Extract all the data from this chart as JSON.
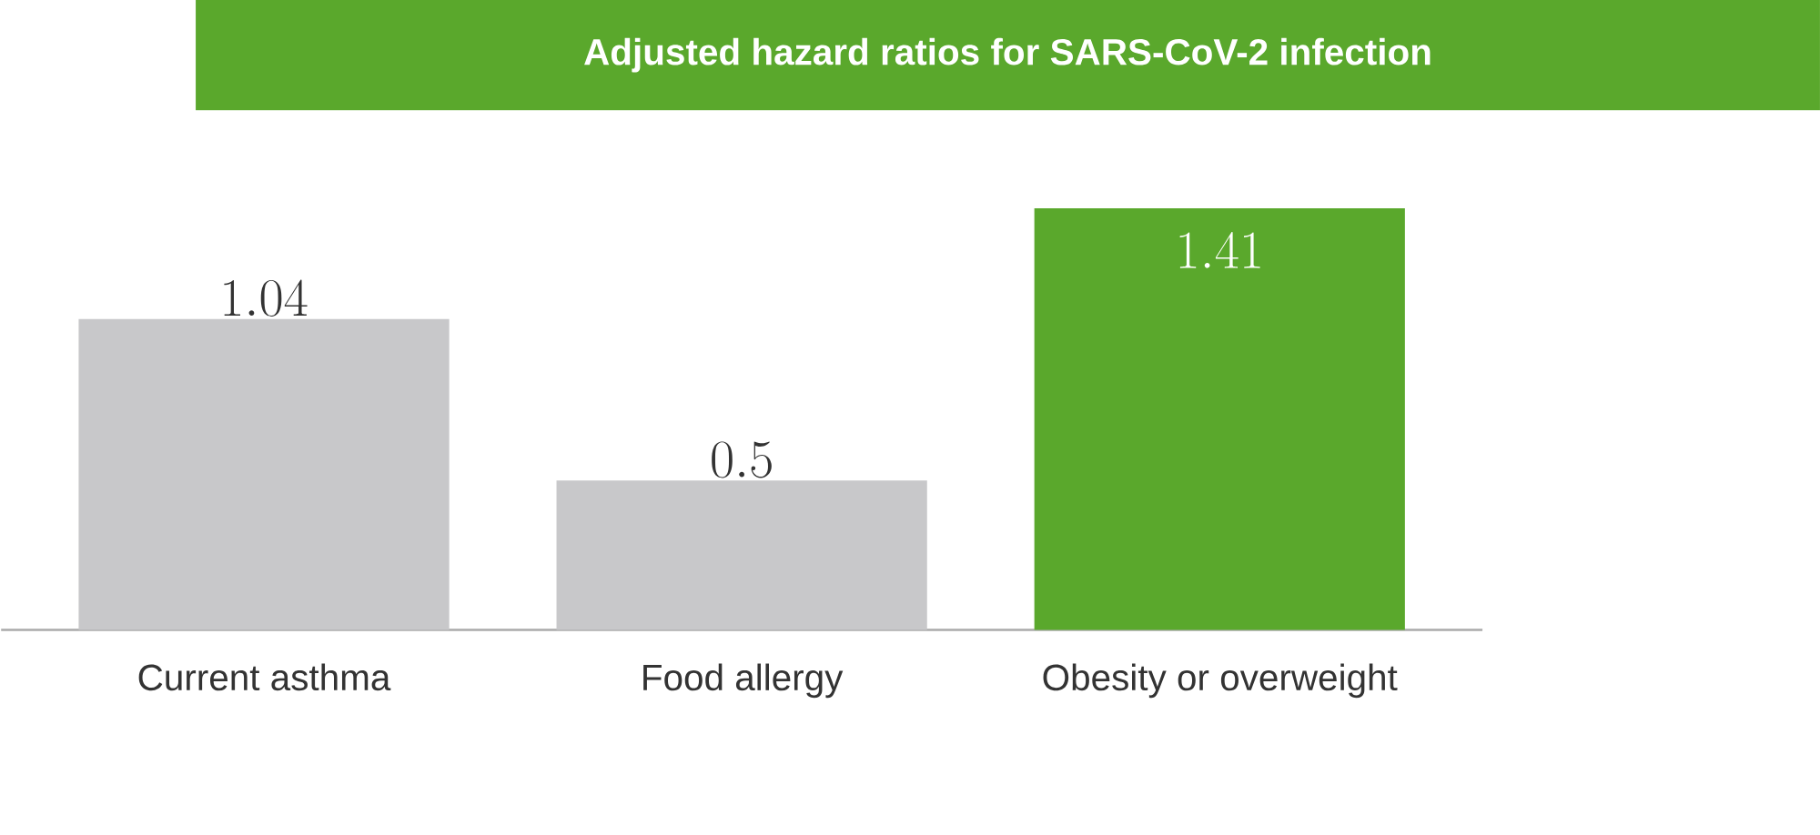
{
  "chart_data": {
    "type": "bar",
    "title": "Adjusted hazard ratios for SARS-CoV-2 infection",
    "categories": [
      "Current asthma",
      "Food allergy",
      "Obesity or overweight"
    ],
    "values": [
      1.04,
      0.5,
      1.41
    ],
    "colors": [
      "#c8c8ca",
      "#c8c8ca",
      "#5aa82c"
    ],
    "data_labels": true
  }
}
